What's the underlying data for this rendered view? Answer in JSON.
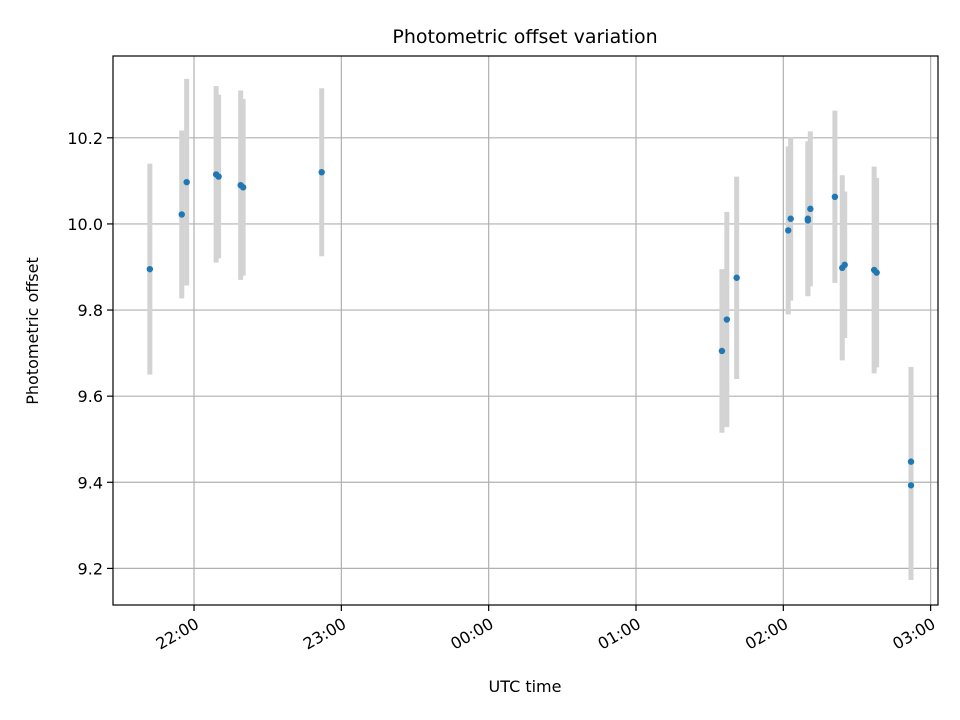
{
  "chart_data": {
    "type": "scatter",
    "title": "Photometric offset variation",
    "xlabel": "UTC time",
    "ylabel": "Photometric offset",
    "grid": true,
    "x_ticks": [
      "22:00",
      "23:00",
      "00:00",
      "01:00",
      "02:00",
      "03:00"
    ],
    "y_ticks": [
      "9.2",
      "9.4",
      "9.6",
      "9.8",
      "10.0",
      "10.2"
    ],
    "x_start_time": "21:27",
    "x_end_time": "03:03",
    "ylim": [
      9.115,
      10.39
    ],
    "colors": {
      "point": "#1f77b4",
      "errorbar": "#d3d3d3",
      "grid": "#b0b0b0"
    },
    "points": [
      {
        "time": "21:42",
        "y": 9.895,
        "err": 0.245
      },
      {
        "time": "21:55",
        "y": 10.022,
        "err": 0.195
      },
      {
        "time": "21:57",
        "y": 10.097,
        "err": 0.24
      },
      {
        "time": "22:09",
        "y": 10.115,
        "err": 0.205
      },
      {
        "time": "22:10",
        "y": 10.11,
        "err": 0.19
      },
      {
        "time": "22:19",
        "y": 10.09,
        "err": 0.22
      },
      {
        "time": "22:20",
        "y": 10.085,
        "err": 0.205
      },
      {
        "time": "22:52",
        "y": 10.12,
        "err": 0.195
      },
      {
        "time": "01:35",
        "y": 9.705,
        "err": 0.19
      },
      {
        "time": "01:37",
        "y": 9.778,
        "err": 0.25
      },
      {
        "time": "01:41",
        "y": 9.875,
        "err": 0.235
      },
      {
        "time": "02:02",
        "y": 9.985,
        "err": 0.195
      },
      {
        "time": "02:03",
        "y": 10.012,
        "err": 0.19
      },
      {
        "time": "02:10",
        "y": 10.012,
        "err": 0.18
      },
      {
        "time": "02:10",
        "y": 10.008,
        "err": 0.175
      },
      {
        "time": "02:11",
        "y": 10.035,
        "err": 0.18
      },
      {
        "time": "02:21",
        "y": 10.063,
        "err": 0.2
      },
      {
        "time": "02:24",
        "y": 9.898,
        "err": 0.215
      },
      {
        "time": "02:25",
        "y": 9.905,
        "err": 0.17
      },
      {
        "time": "02:37",
        "y": 9.893,
        "err": 0.24
      },
      {
        "time": "02:38",
        "y": 9.887,
        "err": 0.22
      },
      {
        "time": "02:52",
        "y": 9.448,
        "err": 0.22
      },
      {
        "time": "02:52",
        "y": 9.393,
        "err": 0.22
      }
    ]
  }
}
